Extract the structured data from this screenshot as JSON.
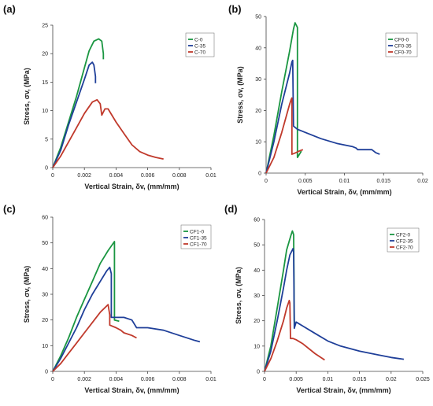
{
  "chart_data": [
    {
      "panel": "(a)",
      "type": "line",
      "xlabel": "Vertical Strain, δv, (mm/mm)",
      "ylabel": "Stress, σv, (MPa)",
      "xlim": [
        0,
        0.01
      ],
      "ylim": [
        0,
        25
      ],
      "xticks": [
        "0",
        "0.002",
        "0.004",
        "0.006",
        "0.008",
        "0.01"
      ],
      "yticks": [
        "0",
        "5",
        "10",
        "15",
        "20",
        "25"
      ],
      "legend_position": "top-right",
      "series": [
        {
          "name": "C-0",
          "color": "#1a9641",
          "points": [
            [
              0,
              0
            ],
            [
              0.0005,
              3.5
            ],
            [
              0.001,
              8
            ],
            [
              0.0015,
              12.5
            ],
            [
              0.002,
              17.5
            ],
            [
              0.0023,
              20.5
            ],
            [
              0.0026,
              22.2
            ],
            [
              0.0029,
              22.6
            ],
            [
              0.0031,
              22.2
            ],
            [
              0.0032,
              20
            ],
            [
              0.0032,
              19
            ]
          ]
        },
        {
          "name": "C-35",
          "color": "#1f3f99",
          "points": [
            [
              0,
              0
            ],
            [
              0.0005,
              3
            ],
            [
              0.001,
              7.5
            ],
            [
              0.0015,
              11.5
            ],
            [
              0.002,
              15.5
            ],
            [
              0.0023,
              18
            ],
            [
              0.0025,
              18.5
            ],
            [
              0.0026,
              18
            ],
            [
              0.0027,
              16
            ],
            [
              0.0027,
              14.8
            ]
          ]
        },
        {
          "name": "C-70",
          "color": "#c0392b",
          "points": [
            [
              0,
              0
            ],
            [
              0.0005,
              2
            ],
            [
              0.001,
              4.5
            ],
            [
              0.0015,
              7
            ],
            [
              0.002,
              9.5
            ],
            [
              0.0025,
              11.5
            ],
            [
              0.0028,
              11.9
            ],
            [
              0.003,
              11.2
            ],
            [
              0.0031,
              9.2
            ],
            [
              0.0033,
              10.3
            ],
            [
              0.0035,
              10.3
            ],
            [
              0.004,
              8
            ],
            [
              0.0045,
              6
            ],
            [
              0.005,
              4
            ],
            [
              0.0055,
              2.8
            ],
            [
              0.006,
              2.2
            ],
            [
              0.0065,
              1.8
            ],
            [
              0.007,
              1.5
            ]
          ]
        }
      ]
    },
    {
      "panel": "(b)",
      "type": "line",
      "xlabel": "Vertical Strain, δv, (mm/mm)",
      "ylabel": "Stress, σv, (MPa)",
      "xlim": [
        0,
        0.02
      ],
      "ylim": [
        0,
        50
      ],
      "xticks": [
        "0",
        "0.005",
        "0.01",
        "0.015",
        "0.02"
      ],
      "yticks": [
        "0",
        "10",
        "20",
        "30",
        "40",
        "50"
      ],
      "legend_position": "top-right",
      "series": [
        {
          "name": "CF0-0",
          "color": "#1a9641",
          "points": [
            [
              0,
              0
            ],
            [
              0.001,
              12
            ],
            [
              0.002,
              26
            ],
            [
              0.003,
              39
            ],
            [
              0.0035,
              46
            ],
            [
              0.0037,
              48
            ],
            [
              0.0039,
              47
            ],
            [
              0.004,
              46.5
            ],
            [
              0.004,
              5
            ],
            [
              0.0045,
              7
            ]
          ]
        },
        {
          "name": "CF0-35",
          "color": "#1f3f99",
          "points": [
            [
              0,
              0
            ],
            [
              0.001,
              10
            ],
            [
              0.002,
              22
            ],
            [
              0.003,
              32
            ],
            [
              0.0033,
              35.5
            ],
            [
              0.0034,
              36
            ],
            [
              0.0035,
              15
            ],
            [
              0.004,
              14
            ],
            [
              0.005,
              13
            ],
            [
              0.007,
              11
            ],
            [
              0.009,
              9.5
            ],
            [
              0.011,
              8.5
            ],
            [
              0.0115,
              8
            ],
            [
              0.0117,
              7.5
            ],
            [
              0.0135,
              7.5
            ],
            [
              0.014,
              6.5
            ],
            [
              0.0145,
              6
            ]
          ]
        },
        {
          "name": "CF0-70",
          "color": "#c0392b",
          "points": [
            [
              0,
              0
            ],
            [
              0.001,
              5
            ],
            [
              0.002,
              13
            ],
            [
              0.003,
              22
            ],
            [
              0.0032,
              23.5
            ],
            [
              0.0033,
              24
            ],
            [
              0.0033,
              6
            ],
            [
              0.0038,
              6.5
            ],
            [
              0.0042,
              7
            ],
            [
              0.0047,
              7.5
            ]
          ]
        }
      ]
    },
    {
      "panel": "(c)",
      "type": "line",
      "xlabel": "Vertical Strain, δv, (mm/mm)",
      "ylabel": "Stress, σv, (MPa)",
      "xlim": [
        0,
        0.01
      ],
      "ylim": [
        0,
        60
      ],
      "xticks": [
        "0",
        "0.002",
        "0.004",
        "0.006",
        "0.008",
        "0.01"
      ],
      "yticks": [
        "0",
        "10",
        "20",
        "30",
        "40",
        "50",
        "60"
      ],
      "legend_position": "top-right",
      "series": [
        {
          "name": "CF1-0",
          "color": "#1a9641",
          "points": [
            [
              0,
              0
            ],
            [
              0.0005,
              6
            ],
            [
              0.001,
              13
            ],
            [
              0.0015,
              21
            ],
            [
              0.002,
              28
            ],
            [
              0.0025,
              35
            ],
            [
              0.003,
              42
            ],
            [
              0.0035,
              47
            ],
            [
              0.0039,
              50.5
            ],
            [
              0.0039,
              20
            ],
            [
              0.0042,
              19.5
            ]
          ]
        },
        {
          "name": "CF1-35",
          "color": "#1f3f99",
          "points": [
            [
              0,
              0
            ],
            [
              0.0005,
              5
            ],
            [
              0.001,
              11
            ],
            [
              0.0015,
              17
            ],
            [
              0.002,
              24
            ],
            [
              0.0025,
              30
            ],
            [
              0.003,
              35
            ],
            [
              0.0034,
              39
            ],
            [
              0.0036,
              40.5
            ],
            [
              0.0037,
              38
            ],
            [
              0.0037,
              21
            ],
            [
              0.0045,
              21
            ],
            [
              0.005,
              20
            ],
            [
              0.0053,
              17
            ],
            [
              0.0055,
              17
            ],
            [
              0.006,
              17
            ],
            [
              0.007,
              16
            ],
            [
              0.008,
              14
            ],
            [
              0.009,
              12
            ],
            [
              0.0093,
              11.5
            ]
          ]
        },
        {
          "name": "CF1-70",
          "color": "#c0392b",
          "points": [
            [
              0,
              0
            ],
            [
              0.0005,
              3
            ],
            [
              0.001,
              7
            ],
            [
              0.0015,
              11
            ],
            [
              0.002,
              15
            ],
            [
              0.0025,
              19
            ],
            [
              0.003,
              23
            ],
            [
              0.0035,
              26
            ],
            [
              0.0036,
              22
            ],
            [
              0.0036,
              18
            ],
            [
              0.004,
              17
            ],
            [
              0.0043,
              16
            ],
            [
              0.0045,
              15
            ],
            [
              0.005,
              14
            ],
            [
              0.0053,
              13
            ]
          ]
        }
      ]
    },
    {
      "panel": "(d)",
      "type": "line",
      "xlabel": "Vertical Strain, δv, (mm/mm)",
      "ylabel": "Stress, σv, (MPa)",
      "xlim": [
        0,
        0.025
      ],
      "ylim": [
        0,
        60
      ],
      "xticks": [
        "0",
        "0.005",
        "0.01",
        "0.015",
        "0.02",
        "0.025"
      ],
      "yticks": [
        "0",
        "10",
        "20",
        "30",
        "40",
        "50",
        "60"
      ],
      "legend_position": "top-right",
      "series": [
        {
          "name": "CF2-0",
          "color": "#1a9641",
          "points": [
            [
              0,
              0
            ],
            [
              0.001,
              10
            ],
            [
              0.002,
              25
            ],
            [
              0.003,
              40
            ],
            [
              0.0035,
              48
            ],
            [
              0.0042,
              54
            ],
            [
              0.0044,
              55.5
            ],
            [
              0.0046,
              54
            ],
            [
              0.0047,
              20
            ],
            [
              0.0048,
              18
            ]
          ]
        },
        {
          "name": "CF2-35",
          "color": "#1f3f99",
          "points": [
            [
              0,
              0
            ],
            [
              0.001,
              8
            ],
            [
              0.002,
              20
            ],
            [
              0.003,
              33
            ],
            [
              0.0035,
              40
            ],
            [
              0.004,
              46
            ],
            [
              0.0045,
              48.5
            ],
            [
              0.0046,
              47
            ],
            [
              0.0047,
              17
            ],
            [
              0.005,
              19.5
            ],
            [
              0.006,
              18
            ],
            [
              0.008,
              15
            ],
            [
              0.01,
              12
            ],
            [
              0.012,
              10
            ],
            [
              0.015,
              8
            ],
            [
              0.018,
              6.5
            ],
            [
              0.02,
              5.5
            ],
            [
              0.022,
              4.8
            ]
          ]
        },
        {
          "name": "CF2-70",
          "color": "#c0392b",
          "points": [
            [
              0,
              0
            ],
            [
              0.001,
              5
            ],
            [
              0.002,
              12
            ],
            [
              0.003,
              20
            ],
            [
              0.0035,
              25
            ],
            [
              0.0039,
              28
            ],
            [
              0.004,
              27
            ],
            [
              0.0041,
              13
            ],
            [
              0.0045,
              13
            ],
            [
              0.005,
              12.5
            ],
            [
              0.006,
              11
            ],
            [
              0.008,
              7
            ],
            [
              0.0095,
              4.5
            ]
          ]
        }
      ]
    }
  ]
}
